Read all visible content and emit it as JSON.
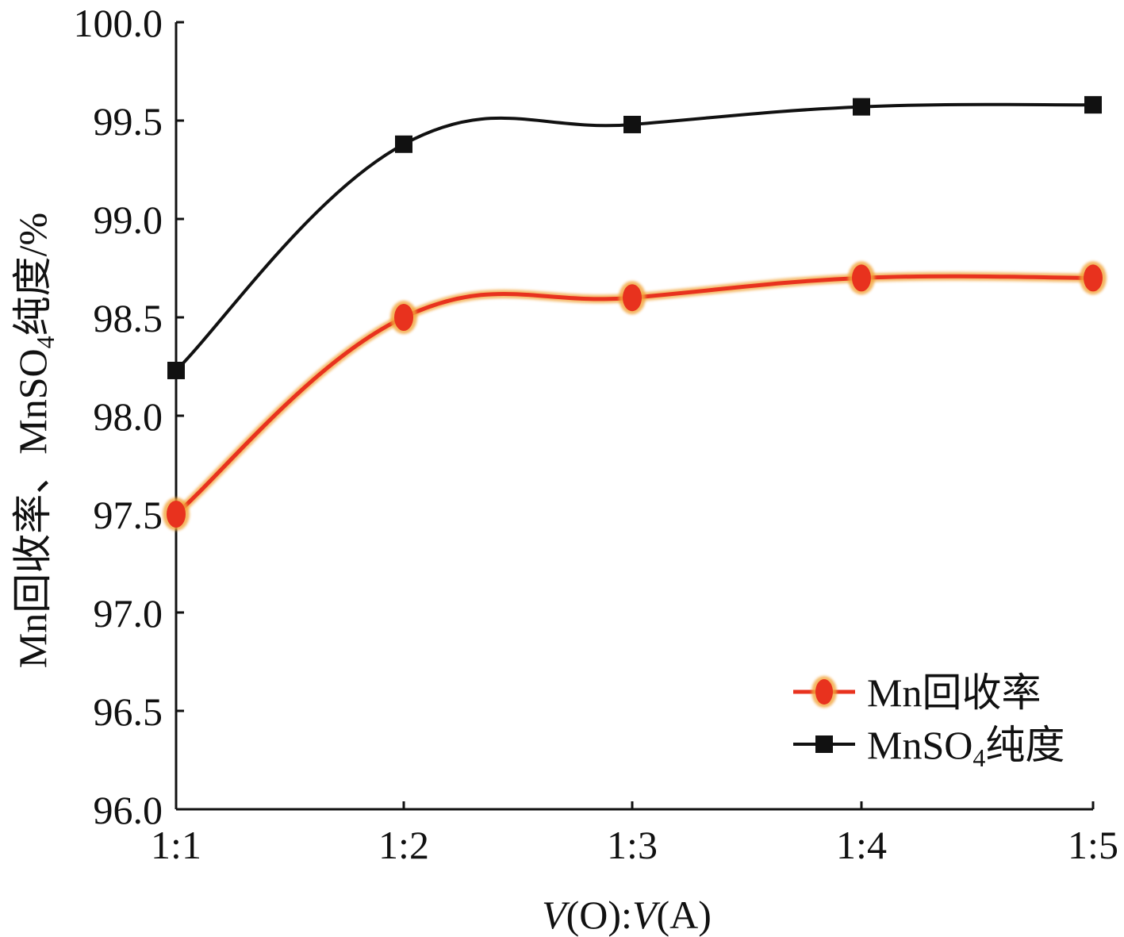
{
  "chart_data": {
    "type": "line",
    "title": "",
    "xlabel": {
      "prefix_italic": "V",
      "prefix_rest": "(O):",
      "suffix_italic": "V",
      "suffix_rest": "(A)"
    },
    "ylabel": {
      "text": "Mn回收率、MnSO",
      "subscript": "4",
      "suffix": "纯度/%"
    },
    "categories": [
      "1:1",
      "1:2",
      "1:3",
      "1:4",
      "1:5"
    ],
    "ylim": [
      96.0,
      100.0
    ],
    "yticks": [
      96.0,
      96.5,
      97.0,
      97.5,
      98.0,
      98.5,
      99.0,
      99.5,
      100.0
    ],
    "ytick_labels": [
      "96.0",
      "96.5",
      "97.0",
      "97.5",
      "98.0",
      "98.5",
      "99.0",
      "99.5",
      "100.0"
    ],
    "grid": false,
    "legend_position": "bottom-right",
    "series": [
      {
        "name": "Mn回收率",
        "name_main": "Mn回收率",
        "name_sub": "",
        "name_suffix": "",
        "values": [
          97.5,
          98.5,
          98.6,
          98.7,
          98.7
        ],
        "color": "#e8321e",
        "halo": "#f2a43a",
        "marker": "circle",
        "curve": "smooth"
      },
      {
        "name": "MnSO4纯度",
        "name_main": "MnSO",
        "name_sub": "4",
        "name_suffix": "纯度",
        "values": [
          98.23,
          99.38,
          99.48,
          99.57,
          99.58
        ],
        "color": "#111111",
        "halo": "",
        "marker": "square",
        "curve": "smooth"
      }
    ]
  }
}
